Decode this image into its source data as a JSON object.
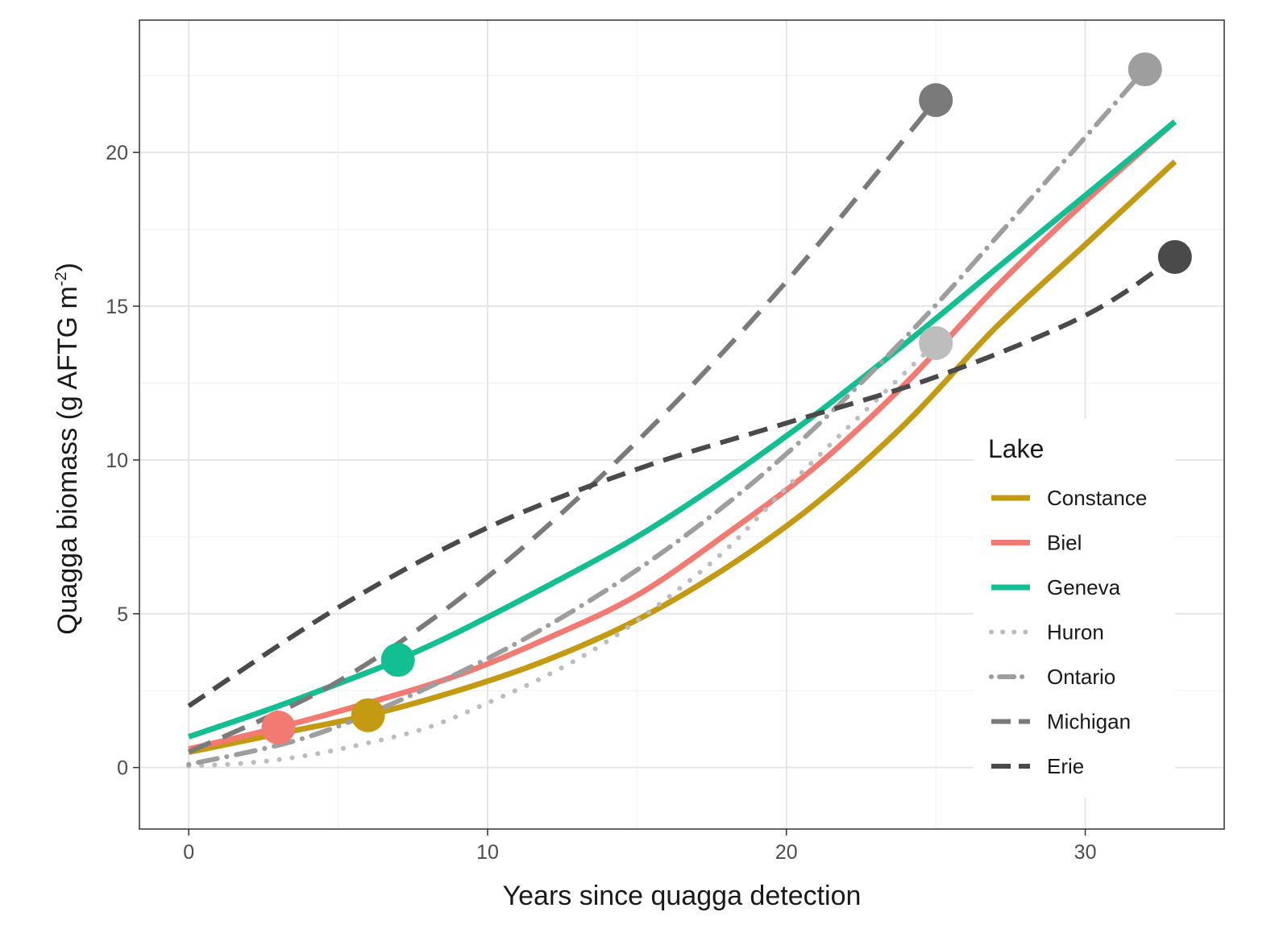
{
  "chart_data": {
    "type": "line",
    "title": "",
    "xlabel": "Years since quagga detection",
    "ylabel": "Quagga biomass (g AFTG m",
    "ylabel_sup": "-2",
    "ylabel_close": ")",
    "xlim": [
      -1.65,
      34.65
    ],
    "ylim": [
      -2,
      24.3
    ],
    "x_ticks": [
      0,
      10,
      20,
      30
    ],
    "y_ticks": [
      0,
      5,
      10,
      15,
      20
    ],
    "grid": true,
    "legend_title": "Lake",
    "legend_position": "right-inside",
    "series": [
      {
        "name": "Constance",
        "color": "#C49A12",
        "dash": "none",
        "width": 7,
        "x": [
          0,
          3,
          6,
          9,
          12,
          15,
          18,
          21,
          24,
          27,
          30,
          33
        ],
        "y": [
          0.5,
          1.1,
          1.7,
          2.5,
          3.5,
          4.8,
          6.5,
          8.6,
          11.2,
          14.3,
          17.0,
          19.7
        ],
        "point": {
          "x": 6,
          "y": 1.7
        }
      },
      {
        "name": "Biel",
        "color": "#F27A72",
        "dash": "none",
        "width": 7,
        "x": [
          0,
          3,
          6,
          9,
          12,
          15,
          18,
          21,
          24,
          27,
          30,
          33
        ],
        "y": [
          0.6,
          1.3,
          2.1,
          3.0,
          4.2,
          5.6,
          7.6,
          9.8,
          12.5,
          15.6,
          18.4,
          21.0
        ],
        "point": {
          "x": 3,
          "y": 1.3
        }
      },
      {
        "name": "Geneva",
        "color": "#12BF93",
        "dash": "none",
        "width": 7,
        "x": [
          0,
          3,
          6,
          7,
          9,
          12,
          15,
          18,
          21,
          24,
          27,
          30,
          33
        ],
        "y": [
          1.0,
          2.0,
          3.1,
          3.5,
          4.4,
          5.9,
          7.5,
          9.4,
          11.5,
          13.8,
          16.2,
          18.6,
          21.0
        ],
        "point": {
          "x": 7,
          "y": 3.5
        }
      },
      {
        "name": "Huron",
        "color": "#BDBDBD",
        "dash": "dot",
        "width": 6,
        "x": [
          0,
          2,
          4,
          6,
          8,
          10,
          12,
          14,
          16,
          18,
          20,
          22,
          25
        ],
        "y": [
          0.05,
          0.15,
          0.4,
          0.8,
          1.3,
          2.1,
          3.0,
          4.1,
          5.5,
          7.1,
          9.1,
          11.0,
          13.8
        ],
        "point": {
          "x": 25,
          "y": 13.8
        }
      },
      {
        "name": "Ontario",
        "color": "#9E9E9E",
        "dash": "dotdash",
        "width": 6,
        "x": [
          0,
          4,
          8,
          12,
          16,
          20,
          24,
          28,
          32
        ],
        "y": [
          0.1,
          1.0,
          2.6,
          4.6,
          7.1,
          10.2,
          14.0,
          18.3,
          22.7
        ],
        "point": {
          "x": 32,
          "y": 22.7
        }
      },
      {
        "name": "Michigan",
        "color": "#7A7A7A",
        "dash": "longdash",
        "width": 6,
        "x": [
          0,
          5,
          10,
          15,
          20,
          25
        ],
        "y": [
          0.5,
          2.8,
          6.2,
          10.6,
          15.8,
          21.7
        ],
        "point": {
          "x": 25,
          "y": 21.7
        }
      },
      {
        "name": "Erie",
        "color": "#4A4A4A",
        "dash": "dash",
        "width": 6,
        "x": [
          0,
          5,
          10,
          15,
          20,
          25,
          30,
          33
        ],
        "y": [
          2.0,
          5.2,
          7.8,
          9.7,
          11.2,
          12.7,
          14.7,
          16.6
        ],
        "point": {
          "x": 33,
          "y": 16.6
        }
      }
    ]
  }
}
